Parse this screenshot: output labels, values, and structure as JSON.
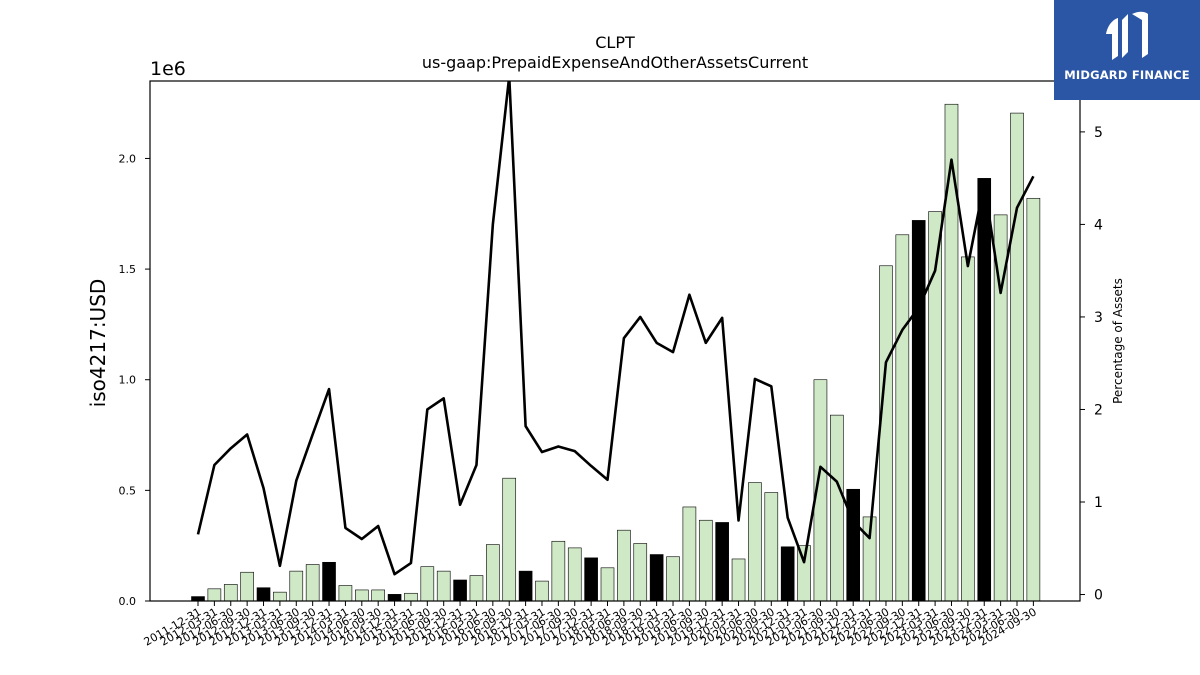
{
  "logo": {
    "text": "MIDGARD FINANCE"
  },
  "chart_data": {
    "type": "bar",
    "title": "CLPT",
    "subtitle": "us-gaap:PrepaidExpenseAndOtherAssetsCurrent",
    "ylabel": "iso4217:USD",
    "y_offset_label": "1e6",
    "y2label": "Percentage of Assets",
    "ylim": [
      0,
      2350000
    ],
    "y2lim": [
      -0.07,
      5.55
    ],
    "yticks": [
      0,
      500000,
      1000000,
      1500000,
      2000000
    ],
    "ytick_labels": [
      "0.0",
      "0.5",
      "1.0",
      "1.5",
      "2.0"
    ],
    "y2ticks": [
      0,
      1,
      2,
      3,
      4,
      5
    ],
    "y2tick_labels": [
      "0",
      "1",
      "2",
      "3",
      "4",
      "5"
    ],
    "grid": false,
    "colors": {
      "bar_default": "#cfe8c6",
      "bar_fiscal_year_end": "#000000",
      "line": "#000000",
      "logo_bg": "#2b56a6"
    },
    "categories": [
      "2011-12-31",
      "2012-03-31",
      "2012-06-30",
      "2012-09-30",
      "2012-12-31",
      "2013-03-31",
      "2013-06-30",
      "2013-09-30",
      "2013-12-31",
      "2014-03-31",
      "2014-06-30",
      "2014-09-30",
      "2014-12-31",
      "2015-03-31",
      "2015-06-30",
      "2015-09-30",
      "2015-12-31",
      "2016-03-31",
      "2016-06-30",
      "2016-09-30",
      "2016-12-31",
      "2017-03-31",
      "2017-06-30",
      "2017-09-30",
      "2017-12-31",
      "2018-03-31",
      "2018-06-30",
      "2018-09-30",
      "2018-12-31",
      "2019-03-31",
      "2019-06-30",
      "2019-09-30",
      "2019-12-31",
      "2020-03-31",
      "2020-06-30",
      "2020-09-30",
      "2020-12-31",
      "2021-03-31",
      "2021-06-30",
      "2021-09-30",
      "2021-12-31",
      "2022-03-31",
      "2022-06-30",
      "2022-09-30",
      "2022-12-31",
      "2023-03-31",
      "2023-06-30",
      "2023-09-30",
      "2023-12-31",
      "2024-03-31",
      "2024-06-30",
      "2024-09-30"
    ],
    "series": [
      {
        "kind": "bar",
        "values": [
          20000,
          55000,
          75000,
          130000,
          60000,
          40000,
          135000,
          165000,
          175000,
          70000,
          50000,
          50000,
          30000,
          35000,
          155000,
          135000,
          95000,
          115000,
          255000,
          555000,
          135000,
          90000,
          270000,
          240000,
          195000,
          150000,
          320000,
          260000,
          210000,
          200000,
          425000,
          365000,
          355000,
          190000,
          535000,
          490000,
          245000,
          250000,
          1000000,
          840000,
          505000,
          380000,
          1515000,
          1655000,
          1720000,
          1760000,
          2245000,
          1555000,
          1910000,
          1745000,
          2205000,
          1820000
        ],
        "fiscal_year_end": [
          true,
          false,
          false,
          false,
          true,
          false,
          false,
          false,
          true,
          false,
          false,
          false,
          true,
          false,
          false,
          false,
          true,
          false,
          false,
          false,
          true,
          false,
          false,
          false,
          true,
          false,
          false,
          false,
          true,
          false,
          false,
          false,
          true,
          false,
          false,
          false,
          true,
          false,
          false,
          false,
          true,
          false,
          false,
          false,
          true,
          false,
          false,
          false,
          true,
          false,
          false,
          false
        ]
      },
      {
        "kind": "line",
        "axis": "y2",
        "values": [
          0.65,
          1.4,
          1.58,
          1.73,
          1.15,
          0.31,
          1.23,
          1.73,
          2.22,
          0.72,
          0.6,
          0.74,
          0.22,
          0.34,
          2.0,
          2.12,
          0.97,
          1.4,
          4.0,
          5.6,
          1.82,
          1.54,
          1.6,
          1.55,
          1.39,
          1.24,
          2.77,
          3.0,
          2.72,
          2.62,
          3.24,
          2.72,
          2.99,
          0.8,
          2.33,
          2.25,
          0.83,
          0.35,
          1.38,
          1.22,
          0.79,
          0.61,
          2.51,
          2.86,
          3.1,
          3.5,
          4.7,
          3.55,
          4.45,
          3.26,
          4.18,
          4.52
        ]
      }
    ]
  }
}
